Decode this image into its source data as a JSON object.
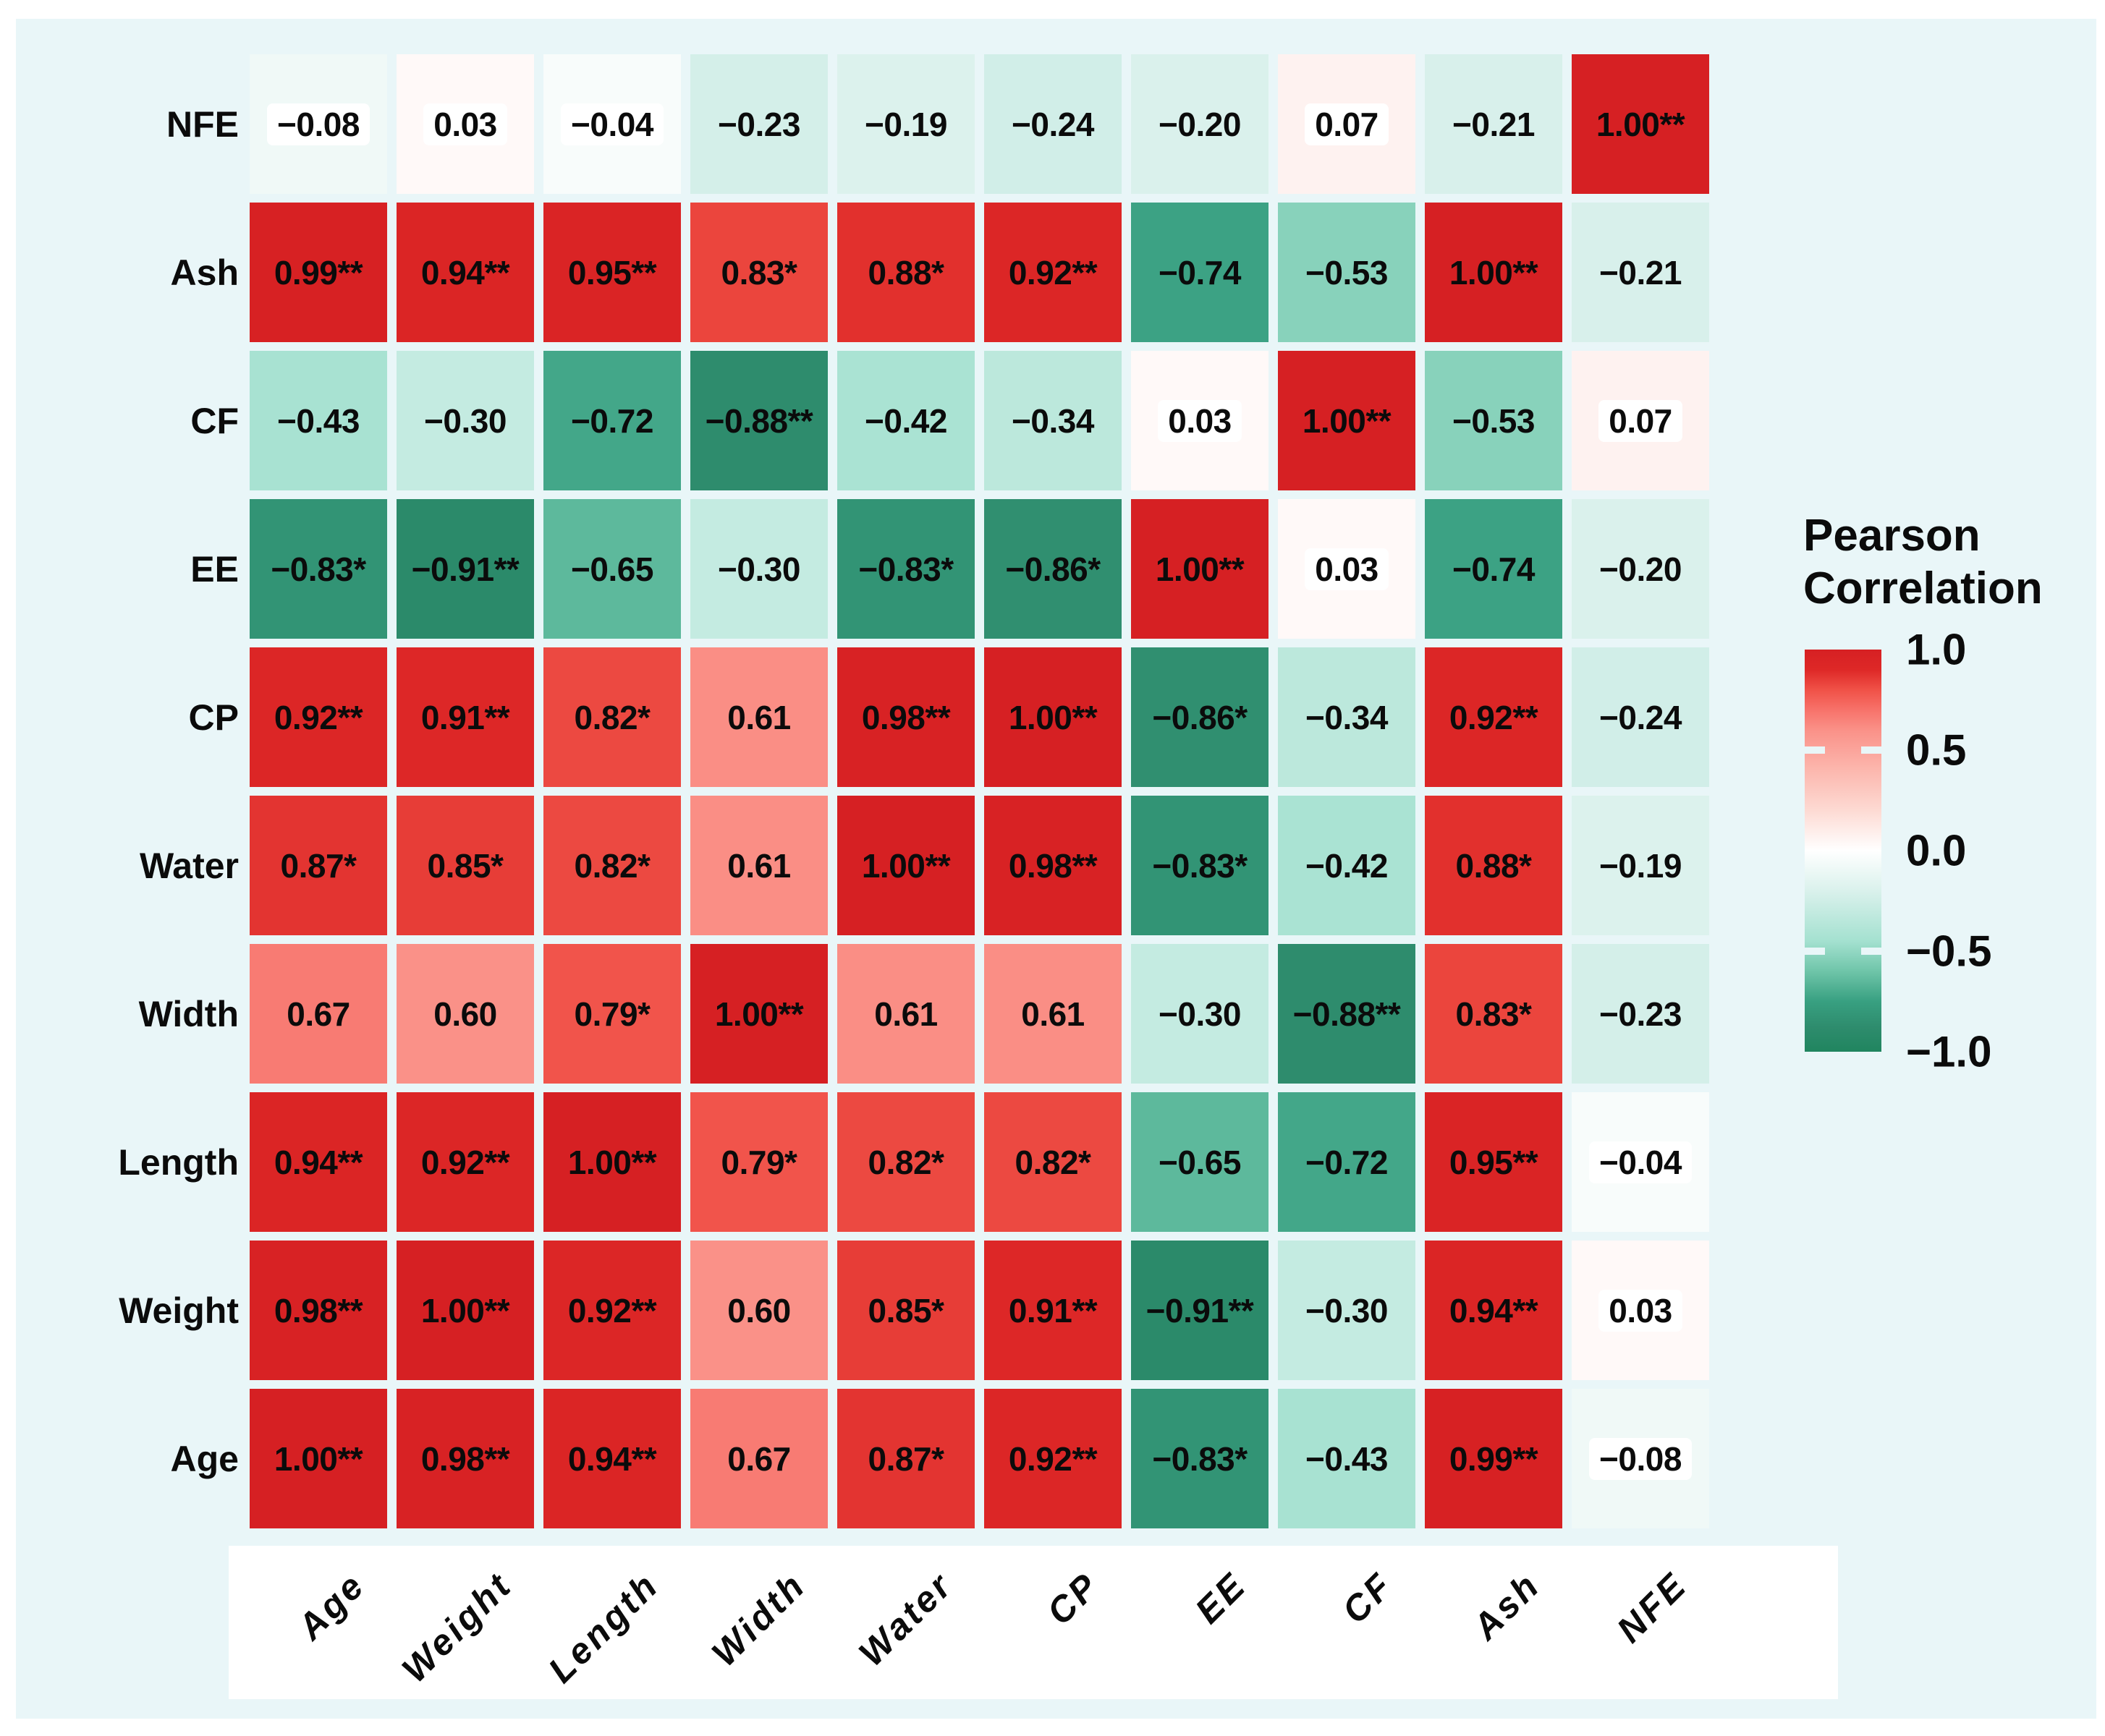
{
  "figure": {
    "panel_bg": "#e9f6f8",
    "page_bg": "#ffffff",
    "positive_color": "#d62023",
    "negative_color": "#20855f"
  },
  "chart_data": {
    "type": "heatmap",
    "title": "",
    "x_categories": [
      "Age",
      "Weight",
      "Length",
      "Width",
      "Water",
      "CP",
      "EE",
      "CF",
      "Ash",
      "NFE"
    ],
    "y_categories_top_to_bottom": [
      "NFE",
      "Ash",
      "CF",
      "EE",
      "CP",
      "Water",
      "Width",
      "Length",
      "Weight",
      "Age"
    ],
    "values": [
      [
        -0.08,
        0.03,
        -0.04,
        -0.23,
        -0.19,
        -0.24,
        -0.2,
        0.07,
        -0.21,
        1.0
      ],
      [
        0.99,
        0.94,
        0.95,
        0.83,
        0.88,
        0.92,
        -0.74,
        -0.53,
        1.0,
        -0.21
      ],
      [
        -0.43,
        -0.3,
        -0.72,
        -0.88,
        -0.42,
        -0.34,
        0.03,
        1.0,
        -0.53,
        0.07
      ],
      [
        -0.83,
        -0.91,
        -0.65,
        -0.3,
        -0.83,
        -0.86,
        1.0,
        0.03,
        -0.74,
        -0.2
      ],
      [
        0.92,
        0.91,
        0.82,
        0.61,
        0.98,
        1.0,
        -0.86,
        -0.34,
        0.92,
        -0.24
      ],
      [
        0.87,
        0.85,
        0.82,
        0.61,
        1.0,
        0.98,
        -0.83,
        -0.42,
        0.88,
        -0.19
      ],
      [
        0.67,
        0.6,
        0.79,
        1.0,
        0.61,
        0.61,
        -0.3,
        -0.88,
        0.83,
        -0.23
      ],
      [
        0.94,
        0.92,
        1.0,
        0.79,
        0.82,
        0.82,
        -0.65,
        -0.72,
        0.95,
        -0.04
      ],
      [
        0.98,
        1.0,
        0.92,
        0.6,
        0.85,
        0.91,
        -0.91,
        -0.3,
        0.94,
        0.03
      ],
      [
        1.0,
        0.98,
        0.94,
        0.67,
        0.87,
        0.92,
        -0.83,
        -0.43,
        0.99,
        -0.08
      ]
    ],
    "cell_labels": [
      [
        "−0.08",
        "0.03",
        "−0.04",
        "−0.23",
        "−0.19",
        "−0.24",
        "−0.20",
        "0.07",
        "−0.21",
        "1.00**"
      ],
      [
        "0.99**",
        "0.94**",
        "0.95**",
        "0.83*",
        "0.88*",
        "0.92**",
        "−0.74",
        "−0.53",
        "1.00**",
        "−0.21"
      ],
      [
        "−0.43",
        "−0.30",
        "−0.72",
        "−0.88**",
        "−0.42",
        "−0.34",
        "0.03",
        "1.00**",
        "−0.53",
        "0.07"
      ],
      [
        "−0.83*",
        "−0.91**",
        "−0.65",
        "−0.30",
        "−0.83*",
        "−0.86*",
        "1.00**",
        "0.03",
        "−0.74",
        "−0.20"
      ],
      [
        "0.92**",
        "0.91**",
        "0.82*",
        "0.61",
        "0.98**",
        "1.00**",
        "−0.86*",
        "−0.34",
        "0.92**",
        "−0.24"
      ],
      [
        "0.87*",
        "0.85*",
        "0.82*",
        "0.61",
        "1.00**",
        "0.98**",
        "−0.83*",
        "−0.42",
        "0.88*",
        "−0.19"
      ],
      [
        "0.67",
        "0.60",
        "0.79*",
        "1.00**",
        "0.61",
        "0.61",
        "−0.30",
        "−0.88**",
        "0.83*",
        "−0.23"
      ],
      [
        "0.94**",
        "0.92**",
        "1.00**",
        "0.79*",
        "0.82*",
        "0.82*",
        "−0.65",
        "−0.72",
        "0.95**",
        "−0.04"
      ],
      [
        "0.98**",
        "1.00**",
        "0.92**",
        "0.60",
        "0.85*",
        "0.91**",
        "−0.91**",
        "−0.30",
        "0.94**",
        "0.03"
      ],
      [
        "1.00**",
        "0.98**",
        "0.94**",
        "0.67",
        "0.87*",
        "0.92**",
        "−0.83*",
        "−0.43",
        "0.99**",
        "−0.08"
      ]
    ],
    "colormap": {
      "pos_stops": [
        [
          0.0,
          "#ffffff"
        ],
        [
          0.2,
          "#fddad3"
        ],
        [
          0.4,
          "#fcb7ae"
        ],
        [
          0.6,
          "#fa9188"
        ],
        [
          0.7,
          "#f7726a"
        ],
        [
          0.8,
          "#f05147"
        ],
        [
          0.9,
          "#de2827"
        ],
        [
          1.0,
          "#d62023"
        ]
      ],
      "neg_stops": [
        [
          0.0,
          "#ffffff"
        ],
        [
          0.2,
          "#daf1ec"
        ],
        [
          0.45,
          "#a4e1d0"
        ],
        [
          0.6,
          "#6fc5a9"
        ],
        [
          0.75,
          "#38a081"
        ],
        [
          0.88,
          "#2e8c6d"
        ],
        [
          1.0,
          "#20855f"
        ]
      ]
    },
    "legend": {
      "title_line1": "Pearson",
      "title_line2": "Correlation",
      "ticks": [
        {
          "label": "1.0",
          "value": 1.0
        },
        {
          "label": "0.5",
          "value": 0.5
        },
        {
          "label": "0.0",
          "value": 0.0
        },
        {
          "label": "−0.5",
          "value": -0.5
        },
        {
          "label": "−1.0",
          "value": -1.0
        }
      ],
      "range": [
        1.0,
        -1.0
      ],
      "position": "right"
    },
    "grid_on": false
  }
}
